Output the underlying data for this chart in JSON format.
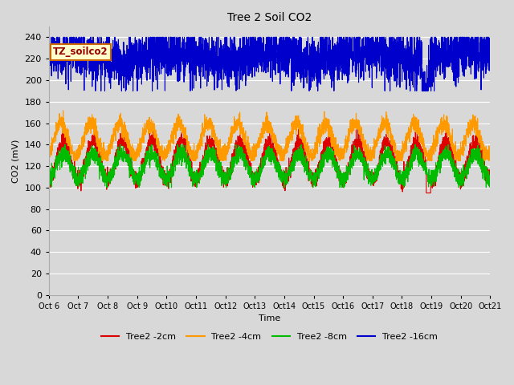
{
  "title": "Tree 2 Soil CO2",
  "xlabel": "Time",
  "ylabel": "CO2 (mV)",
  "ylim": [
    0,
    250
  ],
  "yticks": [
    0,
    20,
    40,
    60,
    80,
    100,
    120,
    140,
    160,
    180,
    200,
    220,
    240
  ],
  "xtick_labels": [
    "Oct 6",
    "Oct 7",
    "Oct 8",
    "Oct 9",
    "Oct 10",
    "Oct 11",
    "Oct 12",
    "Oct 13",
    "Oct 14",
    "Oct 15",
    "Oct 16",
    "Oct 17",
    "Oct 18",
    "Oct 19",
    "Oct 20",
    "Oct 21"
  ],
  "legend_labels": [
    "Tree2 -2cm",
    "Tree2 -4cm",
    "Tree2 -8cm",
    "Tree2 -16cm"
  ],
  "legend_colors": [
    "#dd0000",
    "#ff9900",
    "#00bb00",
    "#0000cc"
  ],
  "annotation_text": "TZ_soilco2",
  "bg_color": "#d8d8d8",
  "plot_bg_color": "#d8d8d8",
  "grid_color": "#ffffff",
  "n_points": 3600,
  "days": 15,
  "red_mean": 125,
  "red_amp": 18,
  "red_noise": 4,
  "orange_mean": 145,
  "orange_amp": 15,
  "orange_noise": 4,
  "green_mean": 120,
  "green_amp": 12,
  "green_noise": 4,
  "blue_mean": 222,
  "blue_noise": 4
}
